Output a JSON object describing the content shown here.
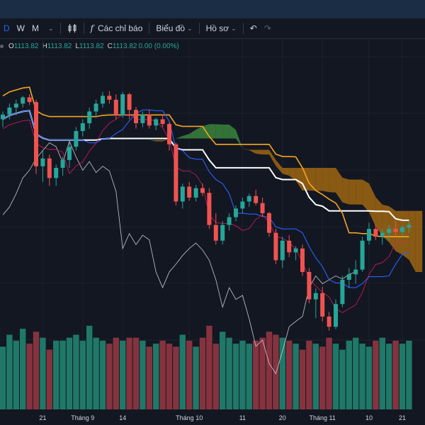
{
  "toolbar": {
    "interval_d": "D",
    "interval_w": "W",
    "interval_m": "M",
    "indicators_label": "Các chỉ báo",
    "chart_type_label": "Biểu đồ",
    "profile_label": "Hồ sơ"
  },
  "legend": {
    "o_label": "O",
    "o_value": "1113.82",
    "h_label": "H",
    "h_value": "1113.82",
    "l_label": "L",
    "l_value": "1113.82",
    "c_label": "C",
    "c_value": "1113.82",
    "change": "0.00 (0.00%)"
  },
  "colors": {
    "background": "#131722",
    "up": "#26a69a",
    "down": "#ef5350",
    "vol_up": "#1f7868",
    "vol_down": "#86333f",
    "cloud_bull": "#3d8b3d",
    "cloud_bear": "#a86b12",
    "kijun": "#f5a623",
    "tenkan": "#2962ff",
    "lagging": "#d1d4dc",
    "baseline": "#ffffff",
    "band": "#e91e63"
  },
  "chart_data": {
    "type": "candlestick",
    "x_ticks": [
      "21",
      "Tháng 9",
      "14",
      "Tháng 10",
      "11",
      "20",
      "Tháng 11",
      "10",
      "21"
    ],
    "candles": [
      [
        1180,
        1190,
        1170,
        1186
      ],
      [
        1186,
        1200,
        1180,
        1195
      ],
      [
        1195,
        1205,
        1185,
        1200
      ],
      [
        1200,
        1210,
        1195,
        1208
      ],
      [
        1208,
        1212,
        1198,
        1202
      ],
      [
        1202,
        1205,
        1110,
        1120
      ],
      [
        1120,
        1140,
        1100,
        1130
      ],
      [
        1130,
        1135,
        1095,
        1105
      ],
      [
        1105,
        1122,
        1095,
        1118
      ],
      [
        1118,
        1132,
        1108,
        1128
      ],
      [
        1128,
        1150,
        1118,
        1145
      ],
      [
        1145,
        1170,
        1140,
        1165
      ],
      [
        1165,
        1180,
        1158,
        1175
      ],
      [
        1175,
        1195,
        1168,
        1190
      ],
      [
        1190,
        1205,
        1182,
        1200
      ],
      [
        1200,
        1215,
        1195,
        1210
      ],
      [
        1210,
        1216,
        1200,
        1205
      ],
      [
        1205,
        1212,
        1180,
        1185
      ],
      [
        1185,
        1215,
        1182,
        1212
      ],
      [
        1212,
        1214,
        1180,
        1192
      ],
      [
        1192,
        1196,
        1168,
        1175
      ],
      [
        1175,
        1190,
        1170,
        1186
      ],
      [
        1186,
        1192,
        1168,
        1172
      ],
      [
        1172,
        1182,
        1166,
        1180
      ],
      [
        1180,
        1186,
        1170,
        1174
      ],
      [
        1174,
        1176,
        1140,
        1148
      ],
      [
        1148,
        1150,
        1070,
        1075
      ],
      [
        1075,
        1098,
        1066,
        1094
      ],
      [
        1094,
        1100,
        1076,
        1080
      ],
      [
        1080,
        1096,
        1075,
        1092
      ],
      [
        1092,
        1098,
        1082,
        1086
      ],
      [
        1086,
        1092,
        1040,
        1045
      ],
      [
        1045,
        1060,
        1020,
        1025
      ],
      [
        1025,
        1050,
        1020,
        1045
      ],
      [
        1045,
        1060,
        1038,
        1055
      ],
      [
        1055,
        1070,
        1050,
        1066
      ],
      [
        1066,
        1080,
        1060,
        1075
      ],
      [
        1075,
        1085,
        1068,
        1082
      ],
      [
        1082,
        1090,
        1070,
        1073
      ],
      [
        1073,
        1080,
        1055,
        1060
      ],
      [
        1060,
        1062,
        1030,
        1035
      ],
      [
        1035,
        1040,
        995,
        1000
      ],
      [
        1000,
        1030,
        990,
        1025
      ],
      [
        1025,
        1032,
        1004,
        1010
      ],
      [
        1010,
        1018,
        1000,
        1015
      ],
      [
        1015,
        1020,
        980,
        985
      ],
      [
        985,
        990,
        945,
        950
      ],
      [
        950,
        964,
        926,
        958
      ],
      [
        958,
        966,
        922,
        928
      ],
      [
        928,
        934,
        910,
        915
      ],
      [
        915,
        950,
        912,
        944
      ],
      [
        944,
        980,
        940,
        975
      ],
      [
        975,
        990,
        965,
        982
      ],
      [
        982,
        1000,
        970,
        988
      ],
      [
        988,
        1030,
        985,
        1025
      ],
      [
        1025,
        1048,
        1020,
        1040
      ],
      [
        1040,
        1046,
        1026,
        1030
      ],
      [
        1030,
        1040,
        1020,
        1035
      ],
      [
        1035,
        1045,
        1025,
        1040
      ],
      [
        1040,
        1050,
        1030,
        1036
      ],
      [
        1036,
        1045,
        1030,
        1042
      ],
      [
        1042,
        1050,
        1035,
        1045
      ]
    ],
    "volumes": [
      105,
      125,
      115,
      135,
      110,
      130,
      120,
      100,
      115,
      115,
      120,
      125,
      115,
      140,
      120,
      115,
      110,
      120,
      115,
      120,
      120,
      115,
      105,
      110,
      115,
      110,
      105,
      125,
      115,
      105,
      120,
      140,
      110,
      130,
      120,
      110,
      115,
      110,
      115,
      120,
      130,
      125,
      120,
      115,
      110,
      100,
      115,
      110,
      105,
      120,
      110,
      100,
      115,
      120,
      110,
      105,
      115,
      120,
      110,
      115,
      110,
      115
    ],
    "ylim": [
      880,
      1260
    ],
    "grid": true
  }
}
